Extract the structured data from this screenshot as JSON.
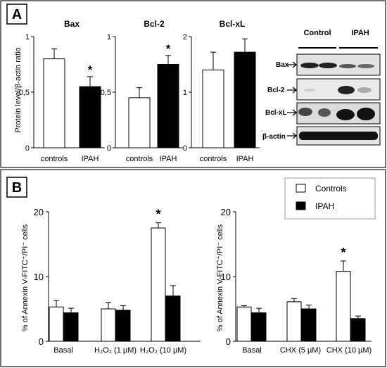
{
  "panel_a": {
    "label": "A",
    "ylabel": "Protein  level/β-actin ratio",
    "charts": [
      {
        "title": "Bax",
        "ymax": 1,
        "ticks": [
          "1",
          "0,5",
          "0"
        ],
        "categories": [
          "controls",
          "IPAH"
        ],
        "values": [
          0.8,
          0.55
        ],
        "errors": [
          0.09,
          0.09
        ],
        "star": [
          false,
          true
        ]
      },
      {
        "title": "Bcl-2",
        "ymax": 1,
        "ticks": [
          "1",
          "0,5",
          "0"
        ],
        "categories": [
          "controls",
          "IPAH"
        ],
        "values": [
          0.45,
          0.75
        ],
        "errors": [
          0.09,
          0.08
        ],
        "star": [
          false,
          true
        ]
      },
      {
        "title": "Bcl-xL",
        "ymax": 2,
        "ticks": [
          "2",
          "1",
          "0"
        ],
        "categories": [
          "controls",
          "IPAH"
        ],
        "values": [
          1.4,
          1.72
        ],
        "errors": [
          0.32,
          0.24
        ],
        "star": [
          false,
          false
        ]
      }
    ],
    "blot": {
      "group_labels": [
        "Control",
        "IPAH"
      ],
      "rows": [
        "Bax",
        "Bcl-2",
        "Bcl-xL",
        "β-actin"
      ]
    }
  },
  "panel_b": {
    "label": "B",
    "ylabel": "% of Annexin V-FITC⁺/PI⁻ cells",
    "ticks": [
      "20",
      "10",
      "0"
    ],
    "legend": [
      "Controls",
      "IPAH"
    ],
    "left": {
      "categories": [
        "Basal",
        "H₂O₂ (1 µM)",
        "H₂O₂ (10 µM)"
      ],
      "series": [
        {
          "name": "Controls",
          "values": [
            5.3,
            5.0,
            17.5
          ],
          "errors": [
            1.0,
            1.0,
            0.8
          ]
        },
        {
          "name": "IPAH",
          "values": [
            4.4,
            4.8,
            7.0
          ],
          "errors": [
            0.7,
            0.7,
            1.6
          ]
        }
      ],
      "star_index": 2
    },
    "right": {
      "categories": [
        "Basal",
        "CHX (5 µM)",
        "CHX (10 µM)"
      ],
      "series": [
        {
          "name": "Controls",
          "values": [
            5.3,
            6.1,
            10.8
          ],
          "errors": [
            0.2,
            0.5,
            1.6
          ]
        },
        {
          "name": "IPAH",
          "values": [
            4.4,
            5.0,
            3.5
          ],
          "errors": [
            0.7,
            0.6,
            0.4
          ]
        }
      ],
      "star_index": 2
    }
  },
  "chart_data": [
    {
      "type": "bar",
      "title": "Bax",
      "ylabel": "Protein  level/β-actin ratio",
      "categories": [
        "controls",
        "IPAH"
      ],
      "values": [
        0.8,
        0.55
      ],
      "ylim": [
        0,
        1
      ]
    },
    {
      "type": "bar",
      "title": "Bcl-2",
      "categories": [
        "controls",
        "IPAH"
      ],
      "values": [
        0.45,
        0.75
      ],
      "ylim": [
        0,
        1
      ]
    },
    {
      "type": "bar",
      "title": "Bcl-xL",
      "categories": [
        "controls",
        "IPAH"
      ],
      "values": [
        1.4,
        1.72
      ],
      "ylim": [
        0,
        2
      ]
    },
    {
      "type": "bar",
      "ylabel": "% of Annexin V-FITC⁺/PI⁻ cells",
      "categories": [
        "Basal",
        "H₂O₂ (1 µM)",
        "H₂O₂ (10 µM)"
      ],
      "series": [
        {
          "name": "Controls",
          "values": [
            5.3,
            5.0,
            17.5
          ]
        },
        {
          "name": "IPAH",
          "values": [
            4.4,
            4.8,
            7.0
          ]
        }
      ],
      "ylim": [
        0,
        20
      ]
    },
    {
      "type": "bar",
      "ylabel": "% of Annexin V-FITC⁺/PI⁻ cells",
      "categories": [
        "Basal",
        "CHX (5 µM)",
        "CHX (10 µM)"
      ],
      "series": [
        {
          "name": "Controls",
          "values": [
            5.3,
            6.1,
            10.8
          ]
        },
        {
          "name": "IPAH",
          "values": [
            4.4,
            5.0,
            3.5
          ]
        }
      ],
      "ylim": [
        0,
        20
      ]
    }
  ],
  "colors": {
    "control_fill": "#ffffff",
    "ipah_fill": "#000000",
    "frame": "#444444"
  }
}
